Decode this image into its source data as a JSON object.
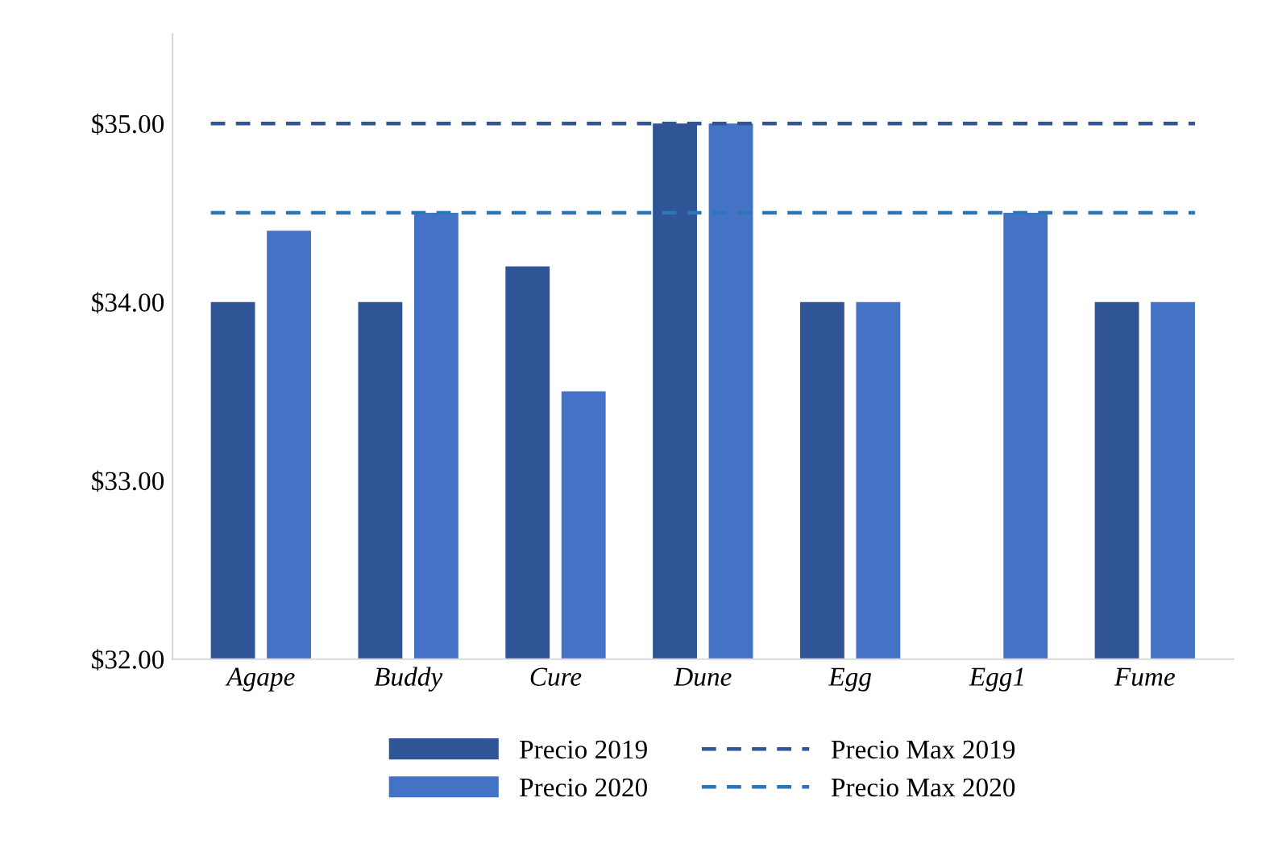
{
  "chart_data": {
    "type": "bar",
    "categories": [
      "Agape",
      "Buddy",
      "Cure",
      "Dune",
      "Egg",
      "Egg1",
      "Fume"
    ],
    "series": [
      {
        "name": "Precio 2019",
        "color": "#2f5597",
        "values": [
          34.0,
          34.0,
          34.2,
          35.0,
          34.0,
          null,
          34.0
        ]
      },
      {
        "name": "Precio 2020",
        "color": "#4472c4",
        "values": [
          34.4,
          34.5,
          33.5,
          35.0,
          34.0,
          34.5,
          34.0
        ]
      }
    ],
    "ref_lines": [
      {
        "axis": "y",
        "value": 35.0,
        "label": "Precio Max 2019",
        "color": "#2f5597",
        "line_style": "dashed"
      },
      {
        "axis": "y",
        "value": 34.5,
        "label": "Precio Max 2020",
        "color": "#2e75b6",
        "line_style": "dashed"
      }
    ],
    "ylim": [
      32,
      35.5
    ],
    "yticks": [
      {
        "value": 32,
        "label": "$32.00"
      },
      {
        "value": 33,
        "label": "$33.00"
      },
      {
        "value": 34,
        "label": "$34.00"
      },
      {
        "value": 35,
        "label": "$35.00"
      }
    ],
    "grid": false,
    "legend": "bottom"
  }
}
